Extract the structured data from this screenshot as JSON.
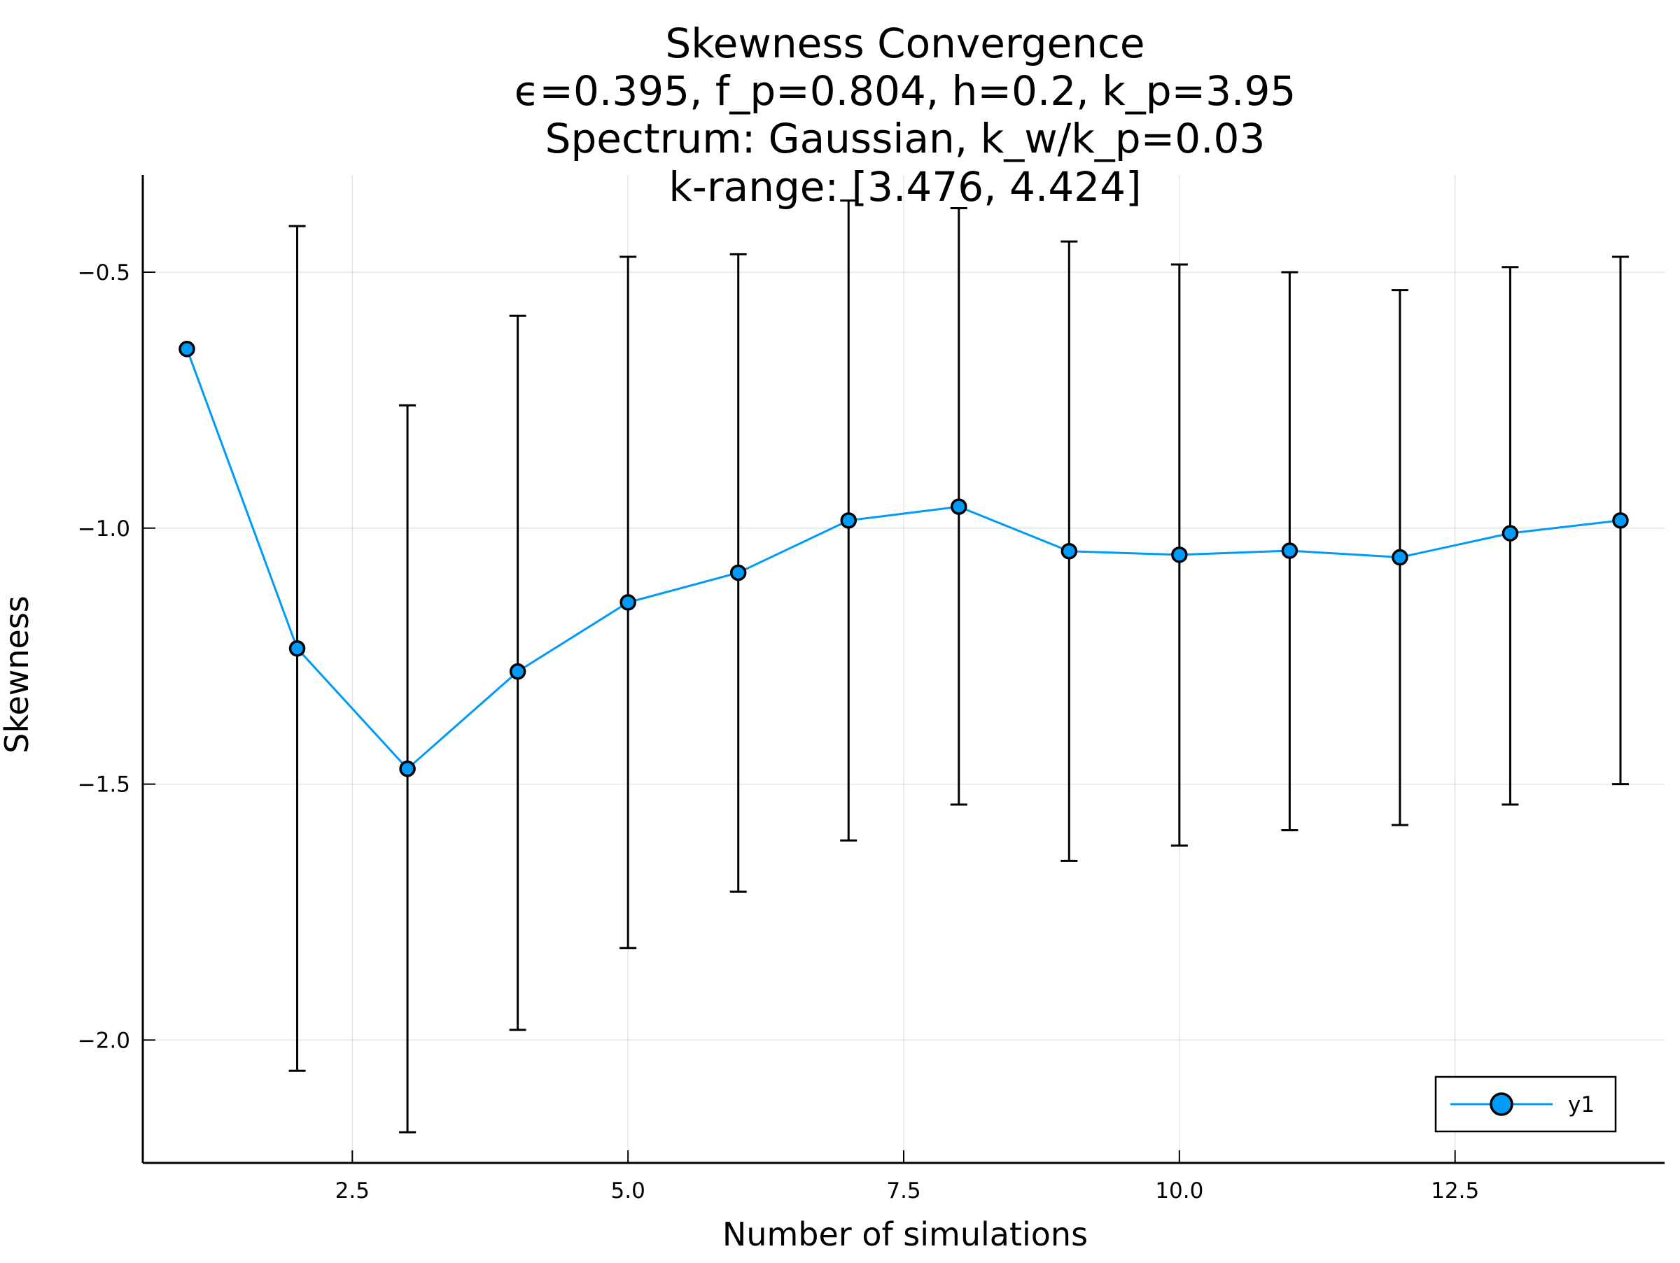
{
  "chart_data": {
    "type": "line",
    "title_lines": [
      "Skewness Convergence",
      "ϵ=0.395, f_p=0.804, h=0.2, k_p=3.95",
      "Spectrum: Gaussian, k_w/k_p=0.03",
      "k-range: [3.476, 4.424]"
    ],
    "xlabel": "Number of simulations",
    "ylabel": "Skewness",
    "xlim": [
      0.6,
      14.4
    ],
    "ylim": [
      -2.24,
      -0.31
    ],
    "xticks": [
      2.5,
      5.0,
      7.5,
      10.0,
      12.5
    ],
    "xtick_labels": [
      "2.5",
      "5.0",
      "7.5",
      "10.0",
      "12.5"
    ],
    "yticks": [
      -2.0,
      -1.5,
      -1.0,
      -0.5
    ],
    "ytick_labels": [
      "−2.0",
      "−1.5",
      "−1.0",
      "−0.5"
    ],
    "grid": true,
    "legend_position": "bottom-right",
    "series": [
      {
        "name": "y1",
        "color": "#009af9",
        "marker": "circle",
        "x": [
          1,
          2,
          3,
          4,
          5,
          6,
          7,
          8,
          9,
          10,
          11,
          12,
          13,
          14
        ],
        "y": [
          -0.65,
          -1.235,
          -1.47,
          -1.28,
          -1.145,
          -1.087,
          -0.985,
          -0.958,
          -1.045,
          -1.052,
          -1.044,
          -1.057,
          -1.01,
          -0.985
        ],
        "error_lower": [
          null,
          -2.06,
          -2.18,
          -1.98,
          -1.82,
          -1.71,
          -1.61,
          -1.54,
          -1.65,
          -1.62,
          -1.59,
          -1.58,
          -1.54,
          -1.5
        ],
        "error_upper": [
          null,
          -0.41,
          -0.76,
          -0.585,
          -0.47,
          -0.465,
          -0.36,
          -0.375,
          -0.44,
          -0.485,
          -0.5,
          -0.535,
          -0.49,
          -0.47
        ]
      }
    ]
  }
}
